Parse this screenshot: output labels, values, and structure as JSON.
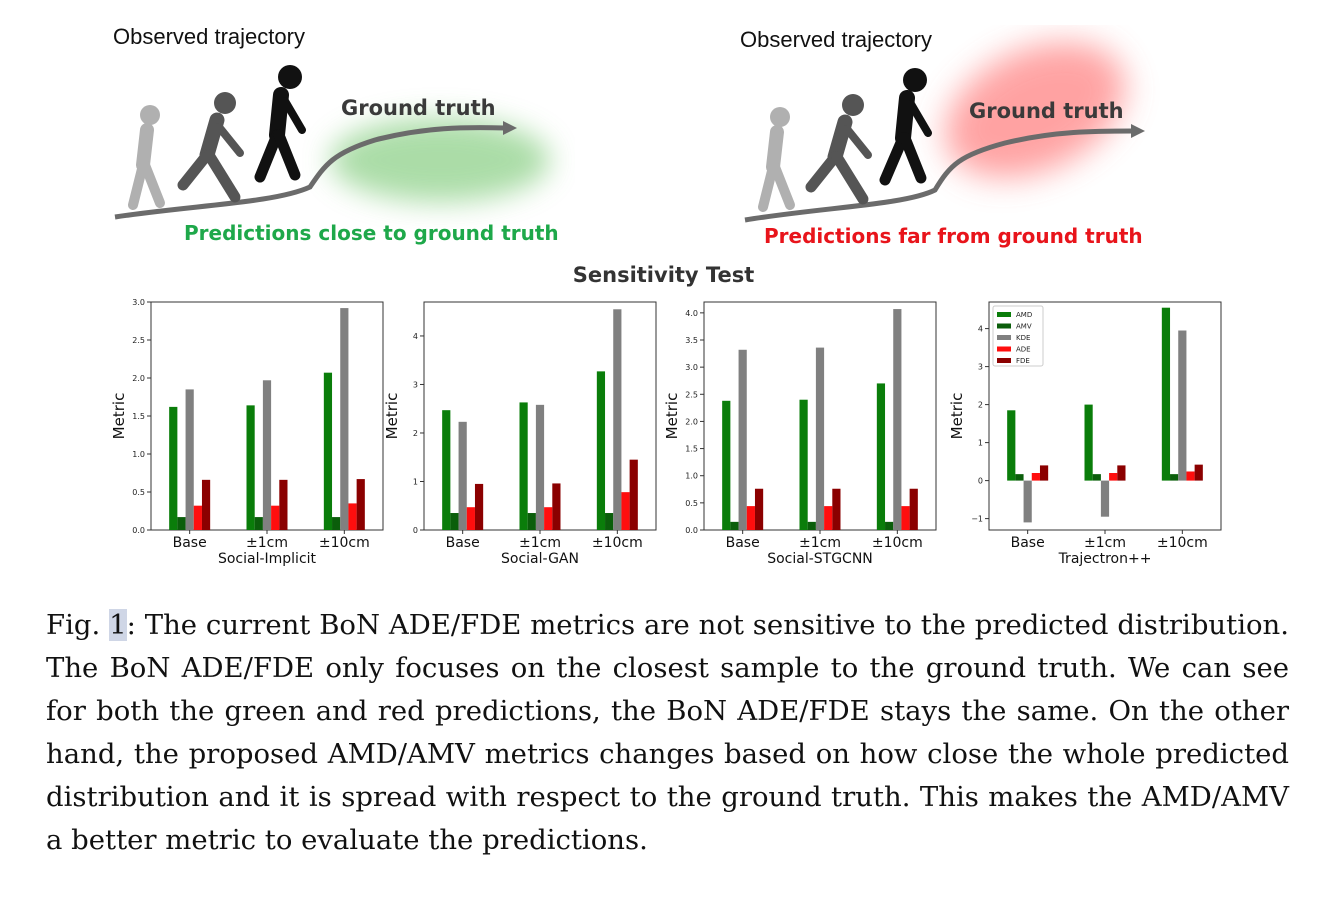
{
  "scenes": [
    {
      "observed_label": "Observed trajectory",
      "ground_truth_label": "Ground truth",
      "prediction_caption": "Predictions close to ground truth",
      "caption_color": "#1ea84a",
      "glow_color": "#8fd18a"
    },
    {
      "observed_label": "Observed trajectory",
      "ground_truth_label": "Ground truth",
      "prediction_caption": "Predictions far from ground truth",
      "caption_color": "#e8141b",
      "glow_color": "#ff8c8c"
    }
  ],
  "section_title": "Sensitivity Test",
  "legend": [
    {
      "label": "AMD",
      "color": "#0a7d0a"
    },
    {
      "label": "AMV",
      "color": "#0b5e0b"
    },
    {
      "label": "KDE",
      "color": "#808080"
    },
    {
      "label": "ADE",
      "color": "#ff0e0e"
    },
    {
      "label": "FDE",
      "color": "#8b0000"
    }
  ],
  "chart_data": [
    {
      "type": "bar",
      "title": "Social-Implicit",
      "xlabel": "Social-Implicit",
      "ylabel": "Metric",
      "categories": [
        "Base",
        "±1cm",
        "±10cm"
      ],
      "ylim": [
        0,
        3.0
      ],
      "yticks": [
        "0.0",
        "0.5",
        "1.0",
        "1.5",
        "2.0",
        "2.5",
        "3.0"
      ],
      "ytick_values": [
        0,
        0.5,
        1.0,
        1.5,
        2.0,
        2.5,
        3.0
      ],
      "series": [
        {
          "name": "AMD",
          "values": [
            1.62,
            1.64,
            2.07
          ]
        },
        {
          "name": "AMV",
          "values": [
            0.17,
            0.17,
            0.17
          ]
        },
        {
          "name": "KDE",
          "values": [
            1.85,
            1.97,
            2.92
          ]
        },
        {
          "name": "ADE",
          "values": [
            0.32,
            0.32,
            0.35
          ]
        },
        {
          "name": "FDE",
          "values": [
            0.66,
            0.66,
            0.67
          ]
        }
      ]
    },
    {
      "type": "bar",
      "title": "Social-GAN",
      "xlabel": "Social-GAN",
      "ylabel": "Metric",
      "categories": [
        "Base",
        "±1cm",
        "±10cm"
      ],
      "ylim": [
        0,
        4.7
      ],
      "yticks": [
        "0",
        "1",
        "2",
        "3",
        "4"
      ],
      "ytick_values": [
        0,
        1,
        2,
        3,
        4
      ],
      "series": [
        {
          "name": "AMD",
          "values": [
            2.47,
            2.63,
            3.27
          ]
        },
        {
          "name": "AMV",
          "values": [
            0.35,
            0.35,
            0.35
          ]
        },
        {
          "name": "KDE",
          "values": [
            2.23,
            2.58,
            4.55
          ]
        },
        {
          "name": "ADE",
          "values": [
            0.47,
            0.47,
            0.78
          ]
        },
        {
          "name": "FDE",
          "values": [
            0.95,
            0.96,
            1.45
          ]
        }
      ]
    },
    {
      "type": "bar",
      "title": "Social-STGCNN",
      "xlabel": "Social-STGCNN",
      "ylabel": "Metric",
      "categories": [
        "Base",
        "±1cm",
        "±10cm"
      ],
      "ylim": [
        0,
        4.2
      ],
      "yticks": [
        "0.0",
        "0.5",
        "1.0",
        "1.5",
        "2.0",
        "2.5",
        "3.0",
        "3.5",
        "4.0"
      ],
      "ytick_values": [
        0,
        0.5,
        1.0,
        1.5,
        2.0,
        2.5,
        3.0,
        3.5,
        4.0
      ],
      "series": [
        {
          "name": "AMD",
          "values": [
            2.38,
            2.4,
            2.7
          ]
        },
        {
          "name": "AMV",
          "values": [
            0.15,
            0.15,
            0.15
          ]
        },
        {
          "name": "KDE",
          "values": [
            3.32,
            3.36,
            4.07
          ]
        },
        {
          "name": "ADE",
          "values": [
            0.44,
            0.44,
            0.44
          ]
        },
        {
          "name": "FDE",
          "values": [
            0.76,
            0.76,
            0.76
          ]
        }
      ]
    },
    {
      "type": "bar",
      "title": "Trajectron++",
      "xlabel": "Trajectron++",
      "ylabel": "Metric",
      "categories": [
        "Base",
        "±1cm",
        "±10cm"
      ],
      "ylim": [
        -1.3,
        4.7
      ],
      "yticks": [
        "−1",
        "0",
        "1",
        "2",
        "3",
        "4"
      ],
      "ytick_values": [
        -1,
        0,
        1,
        2,
        3,
        4
      ],
      "series": [
        {
          "name": "AMD",
          "values": [
            1.85,
            2.0,
            4.55
          ]
        },
        {
          "name": "AMV",
          "values": [
            0.17,
            0.17,
            0.17
          ]
        },
        {
          "name": "KDE",
          "values": [
            -1.1,
            -0.95,
            3.95
          ]
        },
        {
          "name": "ADE",
          "values": [
            0.2,
            0.2,
            0.24
          ]
        },
        {
          "name": "FDE",
          "values": [
            0.4,
            0.4,
            0.42
          ]
        }
      ],
      "legend": "top-left"
    }
  ],
  "caption": {
    "prefix": "Fig. ",
    "number": "1",
    "text": ": The current BoN ADE/FDE metrics are not sensitive to the predicted distribution. The BoN ADE/FDE only focuses on the closest sample to the ground truth. We can see for both the green and red predictions, the BoN ADE/FDE stays the same. On the other hand, the proposed AMD/AMV metrics changes based on how close the whole predicted distribution and it is spread with respect to the ground truth. This makes the AMD/AMV a better metric to evaluate the predictions."
  }
}
